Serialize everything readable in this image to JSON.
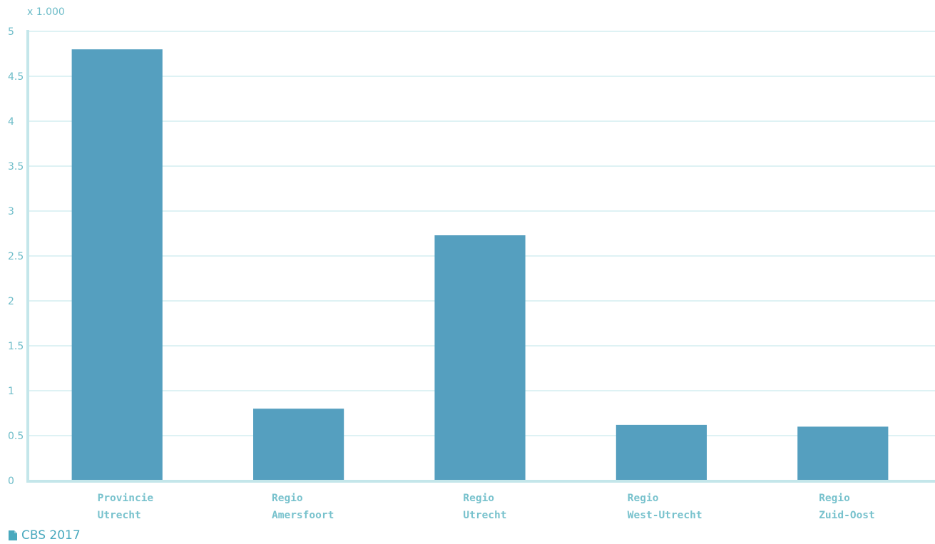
{
  "chart_data": {
    "type": "bar",
    "unit_label": "x 1.000",
    "categories": [
      [
        "Provincie",
        "Utrecht"
      ],
      [
        "Regio",
        "Amersfoort"
      ],
      [
        "Regio",
        "Utrecht"
      ],
      [
        "Regio",
        "West-Utrecht"
      ],
      [
        "Regio",
        "Zuid-Oost"
      ]
    ],
    "values": [
      4.8,
      0.8,
      2.73,
      0.62,
      0.6
    ],
    "ylim": [
      0,
      5
    ],
    "yticks": [
      0,
      0.5,
      1,
      1.5,
      2,
      2.5,
      3,
      3.5,
      4,
      4.5,
      5
    ],
    "ytick_labels": [
      "0",
      "0.5",
      "1",
      "1.5",
      "2",
      "2.5",
      "3",
      "3.5",
      "4",
      "4.5",
      "5"
    ],
    "grid": true,
    "bar_color": "#559fbf",
    "grid_color": "#d4eef1",
    "axis_color": "#c4e6ea",
    "text_color": "#6dbcc8"
  },
  "source": {
    "icon": "document-icon",
    "text": "CBS 2017"
  }
}
